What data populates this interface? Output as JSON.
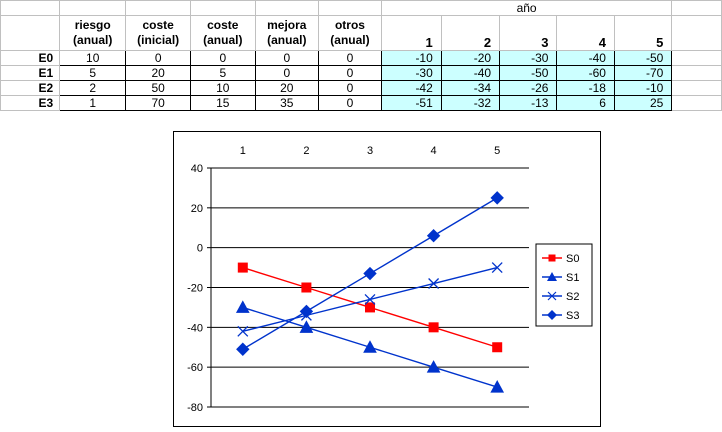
{
  "table": {
    "year_header": "año",
    "headers": [
      "riesgo\n(anual)",
      "coste\n(inicial)",
      "coste\n(anual)",
      "mejora\n(anual)",
      "otros\n(anual)"
    ],
    "year_labels": [
      "1",
      "2",
      "3",
      "4",
      "5"
    ],
    "rows": [
      {
        "label": "E0",
        "params": [
          "10",
          "0",
          "0",
          "0",
          "0"
        ],
        "results": [
          "-10",
          "-20",
          "-30",
          "-40",
          "-50"
        ]
      },
      {
        "label": "E1",
        "params": [
          "5",
          "20",
          "5",
          "0",
          "0"
        ],
        "results": [
          "-30",
          "-40",
          "-50",
          "-60",
          "-70"
        ]
      },
      {
        "label": "E2",
        "params": [
          "2",
          "50",
          "10",
          "20",
          "0"
        ],
        "results": [
          "-42",
          "-34",
          "-26",
          "-18",
          "-10"
        ]
      },
      {
        "label": "E3",
        "params": [
          "1",
          "70",
          "15",
          "35",
          "0"
        ],
        "results": [
          "-51",
          "-32",
          "-13",
          "6",
          "25"
        ]
      }
    ]
  },
  "chart_data": {
    "type": "line",
    "title": "",
    "xlabel": "",
    "ylabel": "",
    "x": [
      1,
      2,
      3,
      4,
      5
    ],
    "x_tick_labels": [
      "1",
      "2",
      "3",
      "4",
      "5"
    ],
    "x_axis_position": "top",
    "ylim": [
      -80,
      40
    ],
    "y_ticks": [
      40,
      20,
      0,
      -20,
      -40,
      -60,
      -80
    ],
    "grid": "horizontal",
    "legend_position": "right",
    "series": [
      {
        "name": "S0",
        "values": [
          -10,
          -20,
          -30,
          -40,
          -50
        ],
        "color": "#ff0000",
        "marker": "square"
      },
      {
        "name": "S1",
        "values": [
          -30,
          -40,
          -50,
          -60,
          -70
        ],
        "color": "#0033cc",
        "marker": "triangle"
      },
      {
        "name": "S2",
        "values": [
          -42,
          -34,
          -26,
          -18,
          -10
        ],
        "color": "#0033cc",
        "marker": "x"
      },
      {
        "name": "S3",
        "values": [
          -51,
          -32,
          -13,
          6,
          25
        ],
        "color": "#0033cc",
        "marker": "diamond"
      }
    ]
  }
}
